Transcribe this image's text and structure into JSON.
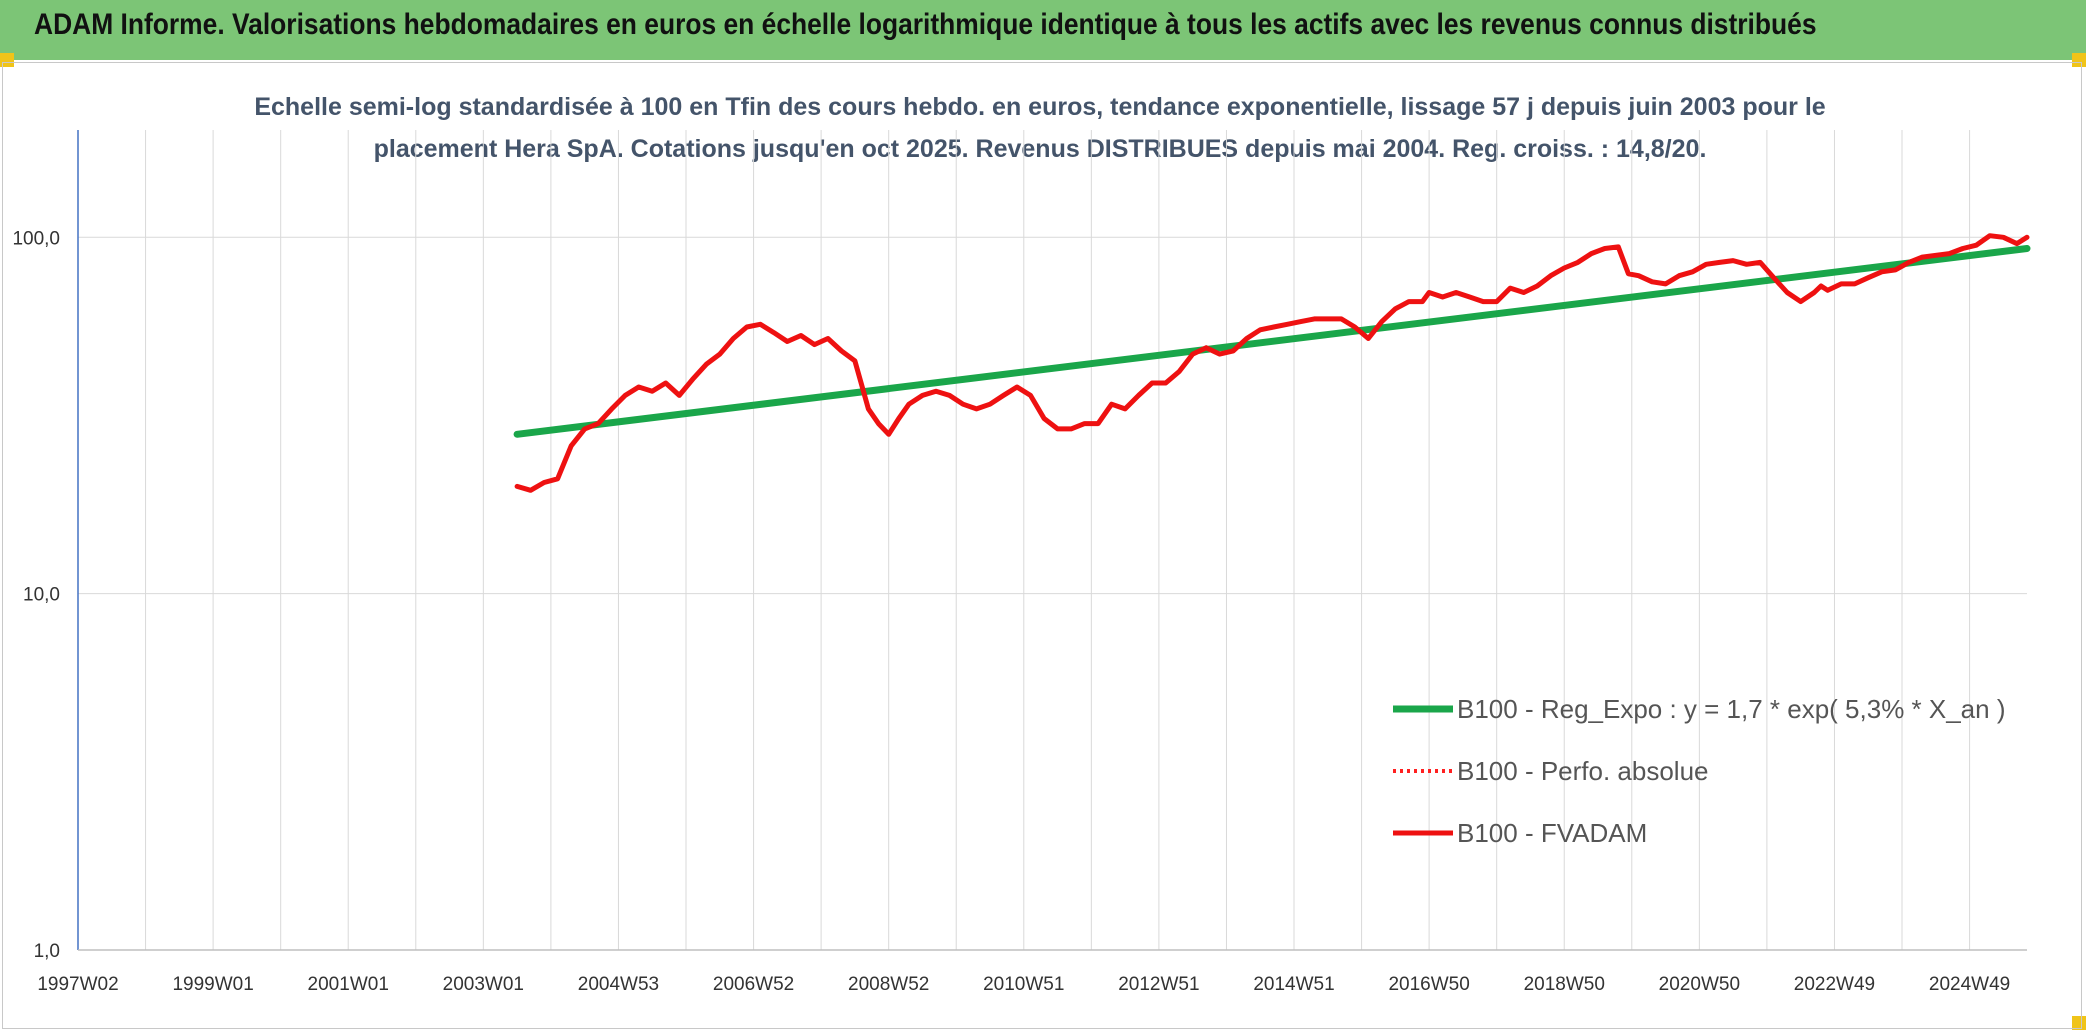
{
  "header": {
    "title": "ADAM Informe. Valorisations hebdomadaires en euros en échelle logarithmique identique à tous les actifs avec les revenus connus distribués"
  },
  "colors": {
    "banner": "#7cc576",
    "trend": "#1aa64a",
    "perf": "#ff2020",
    "fvadam": "#ee1111",
    "grid": "#d9d9d9",
    "accent": "#f0c419"
  },
  "chart_data": {
    "type": "line",
    "y_scale": "log",
    "title_lines": [
      "Echelle semi-log standardisée à 100 en Tfin des cours hebdo. en euros, tendance exponentielle, lissage 57 j depuis juin 2003 pour le",
      "placement Hera SpA. Cotations jusqu'en oct 2025. Revenus DISTRIBUES depuis mai 2004. Reg. croiss. : 14,8/20."
    ],
    "ylim": [
      1,
      200
    ],
    "y_ticks": [
      {
        "value": 1,
        "label": "1,0"
      },
      {
        "value": 10,
        "label": "10,0"
      },
      {
        "value": 100,
        "label": "100,0"
      }
    ],
    "xlim": [
      1997.0,
      2025.85
    ],
    "x_ticks": [
      {
        "pos": 1997.0,
        "label": "1997W02"
      },
      {
        "pos": 1999.0,
        "label": "1999W01"
      },
      {
        "pos": 2001.0,
        "label": "2001W01"
      },
      {
        "pos": 2003.0,
        "label": "2003W01"
      },
      {
        "pos": 2005.0,
        "label": "2004W53"
      },
      {
        "pos": 2007.0,
        "label": "2006W52"
      },
      {
        "pos": 2009.0,
        "label": "2008W52"
      },
      {
        "pos": 2011.0,
        "label": "2010W51"
      },
      {
        "pos": 2013.0,
        "label": "2012W51"
      },
      {
        "pos": 2015.0,
        "label": "2014W51"
      },
      {
        "pos": 2017.0,
        "label": "2016W50"
      },
      {
        "pos": 2019.0,
        "label": "2018W50"
      },
      {
        "pos": 2021.0,
        "label": "2020W50"
      },
      {
        "pos": 2023.0,
        "label": "2022W49"
      },
      {
        "pos": 2025.0,
        "label": "2024W49"
      }
    ],
    "minor_grid_step": 1,
    "series": [
      {
        "name": "B100 - Reg_Expo : y = 1,7 * exp( 5,3% *  X_an )",
        "style": "trend",
        "x": [
          2003.5,
          2025.85
        ],
        "y": [
          28,
          93
        ]
      },
      {
        "name": "B100 - Perfo. absolue",
        "style": "dotted",
        "x": [],
        "y": []
      },
      {
        "name": "B100 - FVADAM",
        "style": "solid",
        "x": [
          2003.5,
          2003.7,
          2003.9,
          2004.1,
          2004.3,
          2004.5,
          2004.7,
          2004.9,
          2005.1,
          2005.3,
          2005.5,
          2005.7,
          2005.9,
          2006.1,
          2006.3,
          2006.5,
          2006.7,
          2006.9,
          2007.1,
          2007.3,
          2007.5,
          2007.7,
          2007.9,
          2008.1,
          2008.3,
          2008.5,
          2008.7,
          2008.85,
          2009.0,
          2009.15,
          2009.3,
          2009.5,
          2009.7,
          2009.9,
          2010.1,
          2010.3,
          2010.5,
          2010.7,
          2010.9,
          2011.1,
          2011.3,
          2011.5,
          2011.7,
          2011.9,
          2012.1,
          2012.3,
          2012.5,
          2012.7,
          2012.9,
          2013.1,
          2013.3,
          2013.5,
          2013.7,
          2013.9,
          2014.1,
          2014.3,
          2014.5,
          2014.7,
          2014.9,
          2015.1,
          2015.3,
          2015.5,
          2015.7,
          2015.9,
          2016.1,
          2016.3,
          2016.5,
          2016.7,
          2016.9,
          2017.0,
          2017.2,
          2017.4,
          2017.6,
          2017.8,
          2018.0,
          2018.2,
          2018.4,
          2018.6,
          2018.8,
          2019.0,
          2019.2,
          2019.4,
          2019.6,
          2019.8,
          2019.95,
          2020.1,
          2020.3,
          2020.5,
          2020.7,
          2020.9,
          2021.1,
          2021.3,
          2021.5,
          2021.7,
          2021.9,
          2022.1,
          2022.3,
          2022.5,
          2022.7,
          2022.8,
          2022.9,
          2023.1,
          2023.3,
          2023.5,
          2023.7,
          2023.9,
          2024.1,
          2024.3,
          2024.5,
          2024.7,
          2024.9,
          2025.1,
          2025.3,
          2025.5,
          2025.7,
          2025.85
        ],
        "y": [
          20,
          19.5,
          20.5,
          21,
          26,
          29,
          30,
          33,
          36,
          38,
          37,
          39,
          36,
          40,
          44,
          47,
          52,
          56,
          57,
          54,
          51,
          53,
          50,
          52,
          48,
          45,
          33,
          30,
          28,
          31,
          34,
          36,
          37,
          36,
          34,
          33,
          34,
          36,
          38,
          36,
          31,
          29,
          29,
          30,
          30,
          34,
          33,
          36,
          39,
          39,
          42,
          47,
          49,
          47,
          48,
          52,
          55,
          56,
          57,
          58,
          59,
          59,
          59,
          56,
          52,
          58,
          63,
          66,
          66,
          70,
          68,
          70,
          68,
          66,
          66,
          72,
          70,
          73,
          78,
          82,
          85,
          90,
          93,
          94,
          79,
          78,
          75,
          74,
          78,
          80,
          84,
          85,
          86,
          84,
          85,
          77,
          70,
          66,
          70,
          73,
          71,
          74,
          74,
          77,
          80,
          81,
          85,
          88,
          89,
          90,
          93,
          95,
          101,
          100,
          96,
          100
        ]
      }
    ]
  }
}
